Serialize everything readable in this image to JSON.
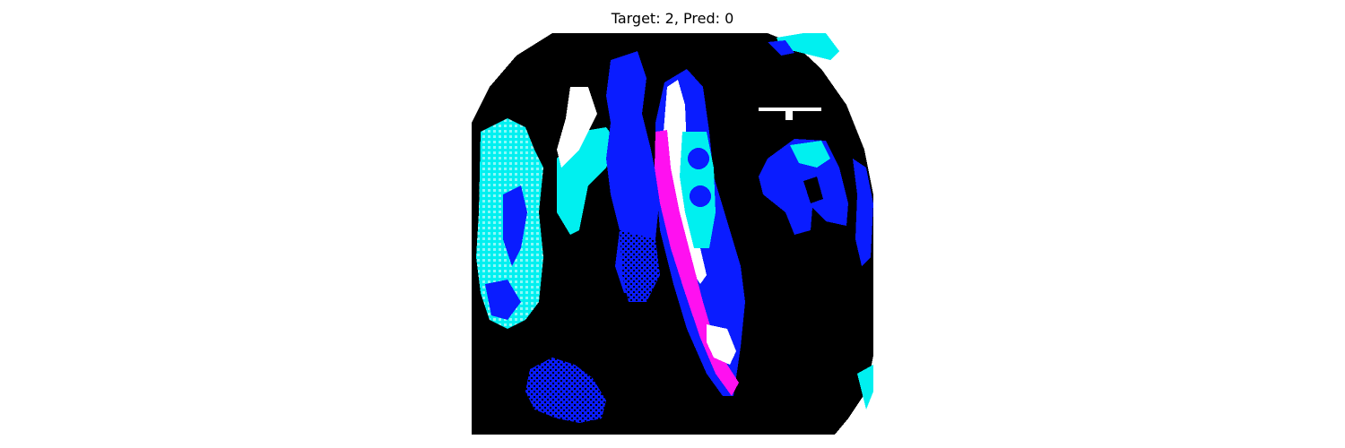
{
  "figure": {
    "title": "Target: 2, Pred: 0",
    "axis": "off"
  },
  "image": {
    "content": "posterized pixel-art scan, black background with blue, cyan, magenta and white regions",
    "palette": {
      "background": "#000000",
      "blue": "#0a1cff",
      "cyan": "#00f0f0",
      "magenta": "#ff10f0",
      "white": "#ffffff"
    }
  }
}
